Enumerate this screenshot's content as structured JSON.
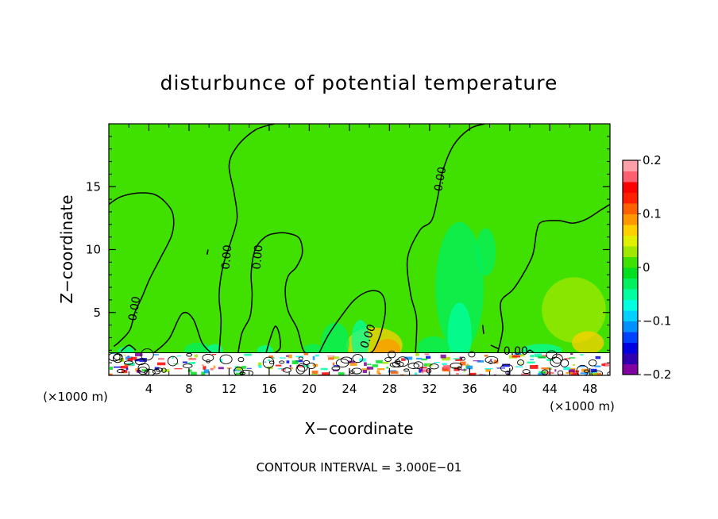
{
  "chart_data": {
    "type": "heatmap",
    "title": "disturbunce of potential temperature",
    "xlabel": "X−coordinate",
    "ylabel": "Z−coordinate",
    "x_unit_left": "(×1000 m)",
    "x_unit_right": "(×1000 m)",
    "footer": "CONTOUR INTERVAL = 3.000E−01",
    "xlim": [
      0,
      50
    ],
    "ylim": [
      0,
      20
    ],
    "x_ticks": [
      4,
      8,
      12,
      16,
      20,
      24,
      28,
      32,
      36,
      40,
      44,
      48
    ],
    "x_tick_labels": [
      "4",
      "8",
      "12",
      "16",
      "20",
      "24",
      "28",
      "32",
      "36",
      "40",
      "44",
      "48"
    ],
    "y_ticks": [
      5,
      10,
      15
    ],
    "y_tick_labels": [
      "5",
      "10",
      "15"
    ],
    "colorbar": {
      "range": [
        -0.2,
        0.2
      ],
      "tick_values": [
        0.2,
        0.1,
        0,
        -0.1,
        -0.2
      ],
      "tick_labels": [
        "0.2",
        "0.1",
        "0",
        "−0.1",
        "−0.2"
      ],
      "colors": [
        "#8000a0",
        "#3000b0",
        "#0000e0",
        "#0040ff",
        "#0090ff",
        "#00d0ff",
        "#00ffe0",
        "#00ffa0",
        "#00f060",
        "#00e020",
        "#40e000",
        "#a0e800",
        "#e0f000",
        "#ffd000",
        "#ff9800",
        "#ff6000",
        "#ff2000",
        "#ff0000",
        "#ff6070",
        "#ffa0a8"
      ]
    },
    "field_level": 0.0,
    "contour_labels": [
      {
        "text": "0.00",
        "x": 2.6,
        "y": 5.3,
        "angle": -80
      },
      {
        "text": "0.00",
        "x": 11.8,
        "y": 9.4,
        "angle": -85
      },
      {
        "text": "0.00",
        "x": 14.9,
        "y": 9.4,
        "angle": -85
      },
      {
        "text": "0.00",
        "x": 25.9,
        "y": 3.1,
        "angle": -70
      },
      {
        "text": "0.00",
        "x": 33.1,
        "y": 15.6,
        "angle": -80
      },
      {
        "text": "0.00",
        "x": 40.6,
        "y": 1.9,
        "angle": 0
      }
    ],
    "contours": [
      [
        [
          0,
          13.6
        ],
        [
          1.2,
          14.2
        ],
        [
          3,
          14.5
        ],
        [
          4.5,
          14.4
        ],
        [
          5.6,
          13.8
        ],
        [
          6.4,
          12.8
        ],
        [
          6.3,
          11.2
        ],
        [
          5.2,
          9.4
        ],
        [
          4.1,
          7.7
        ],
        [
          3.3,
          6.2
        ],
        [
          2.6,
          5.0
        ],
        [
          2.1,
          3.6
        ],
        [
          1.1,
          2.7
        ],
        [
          0.5,
          2.3
        ]
      ],
      [
        [
          1.2,
          1.9
        ],
        [
          2.0,
          2.4
        ],
        [
          2.7,
          2.0
        ]
      ],
      [
        [
          4.5,
          1.8
        ],
        [
          6,
          2.9
        ],
        [
          7.3,
          4.9
        ],
        [
          8.4,
          4.5
        ],
        [
          9.3,
          2.6
        ],
        [
          10.2,
          1.8
        ]
      ],
      [
        [
          9.9,
          10.0
        ],
        [
          9.8,
          9.6
        ]
      ],
      [
        [
          11.0,
          1.8
        ],
        [
          11.2,
          4.3
        ],
        [
          11.0,
          6.4
        ],
        [
          11.4,
          8.7
        ],
        [
          12.2,
          10.7
        ],
        [
          12.8,
          12.5
        ],
        [
          12.5,
          14.5
        ],
        [
          12.0,
          16.7
        ],
        [
          12.8,
          18.2
        ],
        [
          14.6,
          19.5
        ],
        [
          16.5,
          20
        ]
      ],
      [
        [
          12.9,
          1.8
        ],
        [
          13.3,
          3.4
        ],
        [
          14.1,
          4.7
        ],
        [
          14.3,
          6.4
        ],
        [
          14.2,
          8.1
        ],
        [
          14.6,
          10.0
        ],
        [
          15.6,
          11.0
        ],
        [
          16.7,
          11.3
        ],
        [
          17.8,
          11.3
        ],
        [
          19.0,
          10.9
        ],
        [
          19.3,
          9.7
        ],
        [
          18.7,
          8.6
        ],
        [
          17.9,
          7.9
        ],
        [
          17.6,
          6.7
        ],
        [
          17.9,
          5.1
        ],
        [
          18.8,
          3.7
        ],
        [
          19.3,
          2.2
        ],
        [
          19.6,
          1.8
        ]
      ],
      [
        [
          15.7,
          1.8
        ],
        [
          16.1,
          2.9
        ],
        [
          16.6,
          3.9
        ],
        [
          17.0,
          3.3
        ],
        [
          17.1,
          2.2
        ],
        [
          16.6,
          1.8
        ]
      ],
      [
        [
          21.0,
          1.8
        ],
        [
          21.9,
          3.2
        ],
        [
          23.1,
          4.6
        ],
        [
          24.5,
          6.0
        ],
        [
          26.0,
          6.7
        ],
        [
          27.2,
          6.5
        ],
        [
          27.6,
          5.3
        ],
        [
          27.2,
          3.5
        ],
        [
          26.5,
          2.1
        ],
        [
          26.1,
          1.8
        ]
      ],
      [
        [
          30.6,
          1.8
        ],
        [
          30.7,
          4.5
        ],
        [
          30.1,
          6.5
        ],
        [
          29.8,
          9.3
        ],
        [
          31.0,
          11.5
        ],
        [
          32.2,
          12.3
        ],
        [
          32.8,
          14.1
        ],
        [
          33.3,
          16.2
        ],
        [
          34.4,
          18.3
        ],
        [
          36.0,
          19.6
        ],
        [
          37.5,
          20
        ]
      ],
      [
        [
          37.3,
          4.0
        ],
        [
          37.4,
          3.3
        ]
      ],
      [
        [
          38.8,
          1.8
        ],
        [
          39.3,
          3.7
        ],
        [
          39.1,
          5.8
        ],
        [
          40.3,
          6.8
        ],
        [
          41.3,
          8.0
        ],
        [
          42.3,
          9.6
        ],
        [
          42.7,
          11.5
        ],
        [
          43.2,
          12.2
        ],
        [
          44.9,
          12.3
        ],
        [
          46.3,
          12.1
        ],
        [
          47.6,
          12.4
        ],
        [
          49.0,
          13.1
        ],
        [
          50,
          13.6
        ]
      ],
      [
        [
          38.1,
          2.4
        ],
        [
          38.9,
          2.1
        ]
      ],
      [
        [
          41.7,
          1.8
        ],
        [
          42.0,
          2.0
        ],
        [
          42.4,
          1.8
        ]
      ]
    ],
    "field_patches": [
      {
        "x": 26.5,
        "y": 2.4,
        "rx": 2.8,
        "ry": 1.4,
        "level": 0.06
      },
      {
        "x": 27.8,
        "y": 2.0,
        "rx": 1.3,
        "ry": 0.9,
        "level": 0.09
      },
      {
        "x": 22.6,
        "y": 2.6,
        "rx": 1.4,
        "ry": 1.6,
        "level": -0.035
      },
      {
        "x": 25.1,
        "y": 2.8,
        "rx": 0.9,
        "ry": 1.6,
        "level": -0.04
      },
      {
        "x": 35.0,
        "y": 7.0,
        "rx": 2.4,
        "ry": 5.2,
        "level": -0.035
      },
      {
        "x": 35.0,
        "y": 3.2,
        "rx": 1.2,
        "ry": 2.6,
        "level": -0.06
      },
      {
        "x": 37.6,
        "y": 9.8,
        "rx": 1.0,
        "ry": 1.9,
        "level": -0.025
      },
      {
        "x": 32.4,
        "y": 2.2,
        "rx": 1.6,
        "ry": 0.9,
        "level": -0.035
      },
      {
        "x": 46.4,
        "y": 5.2,
        "rx": 3.2,
        "ry": 2.6,
        "level": 0.035
      },
      {
        "x": 47.8,
        "y": 2.6,
        "rx": 1.6,
        "ry": 0.9,
        "level": 0.06
      },
      {
        "x": 44.8,
        "y": 9.8,
        "rx": 2.4,
        "ry": 1.9,
        "level": 0.015
      },
      {
        "x": 43.2,
        "y": 2.0,
        "rx": 2.0,
        "ry": 0.5,
        "level": -0.045
      },
      {
        "x": 8.9,
        "y": 2.0,
        "rx": 1.4,
        "ry": 0.6,
        "level": -0.035
      },
      {
        "x": 10.6,
        "y": 2.0,
        "rx": 0.8,
        "ry": 0.5,
        "level": -0.06
      },
      {
        "x": 15.6,
        "y": 2.0,
        "rx": 0.8,
        "ry": 0.4,
        "level": -0.055
      },
      {
        "x": 1.7,
        "y": 1.9,
        "rx": 0.8,
        "ry": 0.4,
        "level": -0.045
      },
      {
        "x": 20.4,
        "y": 2.0,
        "rx": 1.0,
        "ry": 0.5,
        "level": -0.03
      }
    ],
    "boundary_layer": {
      "z_top": 1.8,
      "dominant_levels": [
        -0.19,
        -0.15,
        -0.11,
        -0.08,
        -0.05,
        -0.02,
        0.03,
        0.08,
        0.11,
        0.14,
        0.17
      ]
    }
  }
}
